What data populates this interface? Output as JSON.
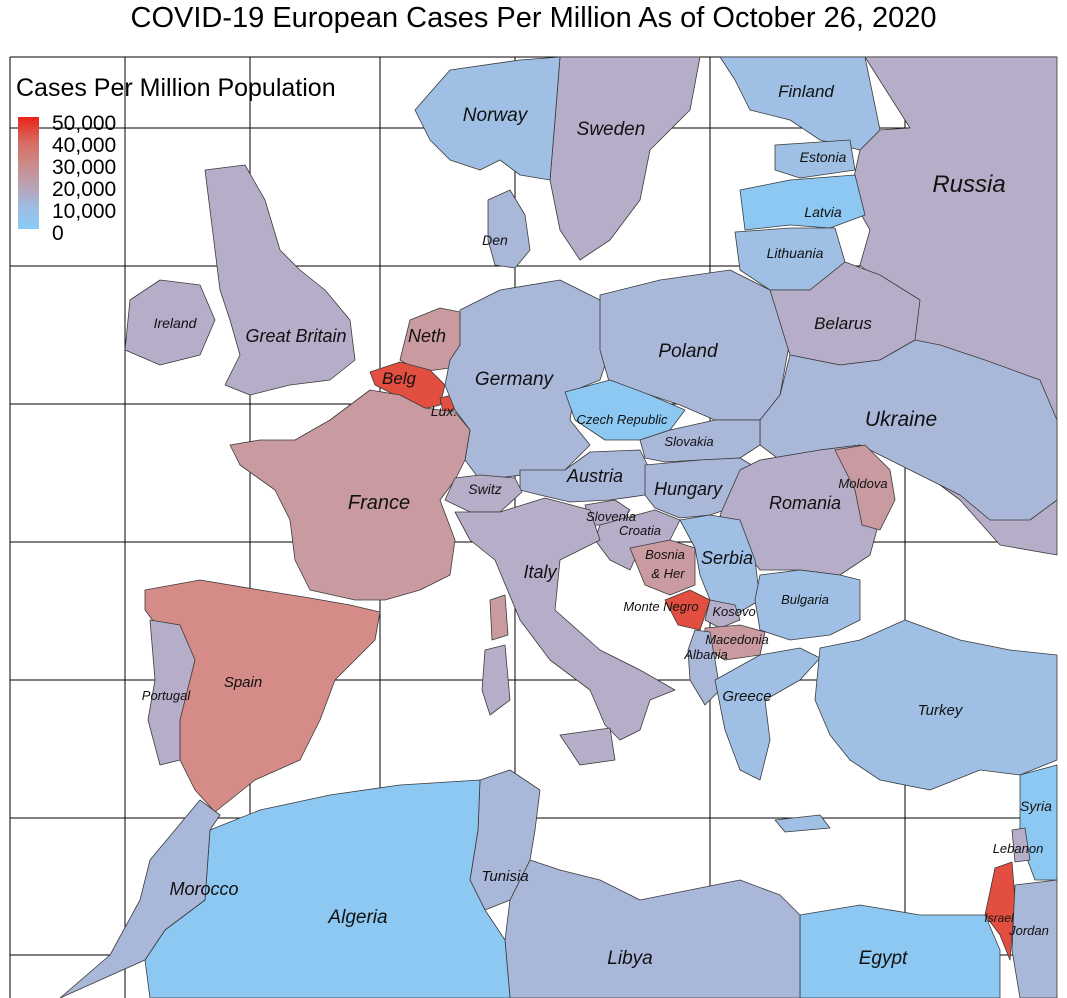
{
  "title": "COVID-19 European Cases Per Million As of October 26, 2020",
  "legend": {
    "title": "Cases Per Million Population",
    "ticks": [
      "50,000",
      "40,000",
      "30,000",
      "20,000",
      "10,000",
      "0"
    ],
    "color_high": "#e8241a",
    "color_low": "#88cdf7"
  },
  "colors": {
    "very_low": "#8dc8f2",
    "low": "#9fc0e4",
    "lowmid": "#a9b7d9",
    "mid": "#b6aec9",
    "midhigh": "#c99ba1",
    "high": "#d58b88",
    "very_high": "#e24f40"
  },
  "countries": [
    {
      "name": "Norway",
      "level": "low"
    },
    {
      "name": "Sweden",
      "level": "mid"
    },
    {
      "name": "Finland",
      "level": "low"
    },
    {
      "name": "Russia",
      "level": "mid"
    },
    {
      "name": "Estonia",
      "level": "low"
    },
    {
      "name": "Latvia",
      "level": "very_low"
    },
    {
      "name": "Lithuania",
      "level": "low"
    },
    {
      "name": "Den",
      "level": "lowmid"
    },
    {
      "name": "Ireland",
      "level": "mid"
    },
    {
      "name": "Great Britain",
      "level": "mid"
    },
    {
      "name": "Neth",
      "level": "midhigh"
    },
    {
      "name": "Belg",
      "level": "very_high"
    },
    {
      "name": "Lux.",
      "level": "very_high"
    },
    {
      "name": "Germany",
      "level": "lowmid"
    },
    {
      "name": "Poland",
      "level": "lowmid"
    },
    {
      "name": "Belarus",
      "level": "mid"
    },
    {
      "name": "Czech Republic",
      "level": "very_low"
    },
    {
      "name": "Slovakia",
      "level": "lowmid"
    },
    {
      "name": "Ukraine",
      "level": "lowmid"
    },
    {
      "name": "Austria",
      "level": "lowmid"
    },
    {
      "name": "Hungary",
      "level": "lowmid"
    },
    {
      "name": "Romania",
      "level": "mid"
    },
    {
      "name": "Moldova",
      "level": "midhigh"
    },
    {
      "name": "France",
      "level": "midhigh"
    },
    {
      "name": "Switz",
      "level": "mid"
    },
    {
      "name": "Slovenia",
      "level": "mid"
    },
    {
      "name": "Croatia",
      "level": "mid"
    },
    {
      "name": "Bosnia & Her",
      "level": "midhigh"
    },
    {
      "name": "Serbia",
      "level": "low"
    },
    {
      "name": "Italy",
      "level": "mid"
    },
    {
      "name": "Monte Negro",
      "level": "very_high"
    },
    {
      "name": "Kosovo",
      "level": "mid"
    },
    {
      "name": "Bulgaria",
      "level": "low"
    },
    {
      "name": "Macedonia",
      "level": "midhigh"
    },
    {
      "name": "Albania",
      "level": "lowmid"
    },
    {
      "name": "Spain",
      "level": "high"
    },
    {
      "name": "Portugal",
      "level": "mid"
    },
    {
      "name": "Greece",
      "level": "low"
    },
    {
      "name": "Turkey",
      "level": "low"
    },
    {
      "name": "Syria",
      "level": "very_low"
    },
    {
      "name": "Lebanon",
      "level": "mid"
    },
    {
      "name": "Israel",
      "level": "very_high"
    },
    {
      "name": "Jordan",
      "level": "lowmid"
    },
    {
      "name": "Morocco",
      "level": "lowmid"
    },
    {
      "name": "Algeria",
      "level": "very_low"
    },
    {
      "name": "Tunisia",
      "level": "lowmid"
    },
    {
      "name": "Libya",
      "level": "lowmid"
    },
    {
      "name": "Egypt",
      "level": "very_low"
    }
  ]
}
